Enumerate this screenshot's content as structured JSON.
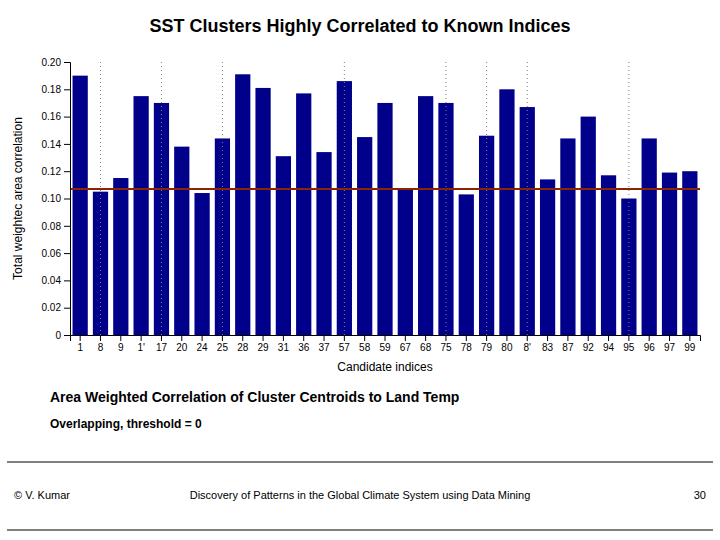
{
  "chart_data": {
    "type": "bar",
    "title": "SST Clusters Highly Correlated to Known Indices",
    "subtitle": "Area Weighted Correlation of Cluster Centroids to Land Temp",
    "subtitle2": "Overlapping, threshold = 0",
    "footer": [
      "© V. Kumar",
      "Discovery of Patterns in the Global Climate System using Data Mining",
      "30"
    ],
    "xlabel": "Candidate indices",
    "ylabel": "Total weightec area correlation",
    "color": "#00008B",
    "threshold": {
      "value": 0.107,
      "color": "#8B2500"
    },
    "group_separators": [
      1.5,
      4.5,
      7.5,
      13.5,
      18.5,
      20.5,
      22.5,
      27.5
    ],
    "ylim": [
      0,
      0.2
    ],
    "yticks": [
      0,
      0.02,
      0.04,
      0.06,
      0.08,
      {
        "value": 0.1,
        "label": "0.10"
      },
      0.12,
      0.14,
      0.16,
      0.18,
      {
        "value": 0.2,
        "label": "0.20"
      }
    ],
    "grid": false,
    "categories": [
      "1",
      "8",
      "9",
      "1'",
      "17",
      "20",
      "24",
      "25",
      "28",
      "29",
      "31",
      "36",
      "37",
      "57",
      "58",
      "59",
      "67",
      "68",
      "75",
      "78",
      "79",
      "80",
      "8'",
      "83",
      "87",
      "92",
      "94",
      "95",
      "96",
      "97",
      "99"
    ],
    "values": [
      0.19,
      0.105,
      0.115,
      0.175,
      0.17,
      0.138,
      0.104,
      0.144,
      0.191,
      0.181,
      0.131,
      0.177,
      0.134,
      0.186,
      0.145,
      0.17,
      0.107,
      0.175,
      0.17,
      0.103,
      0.146,
      0.18,
      0.167,
      0.114,
      0.144,
      0.16,
      0.117,
      0.1,
      0.144,
      0.119,
      0.12
    ]
  }
}
